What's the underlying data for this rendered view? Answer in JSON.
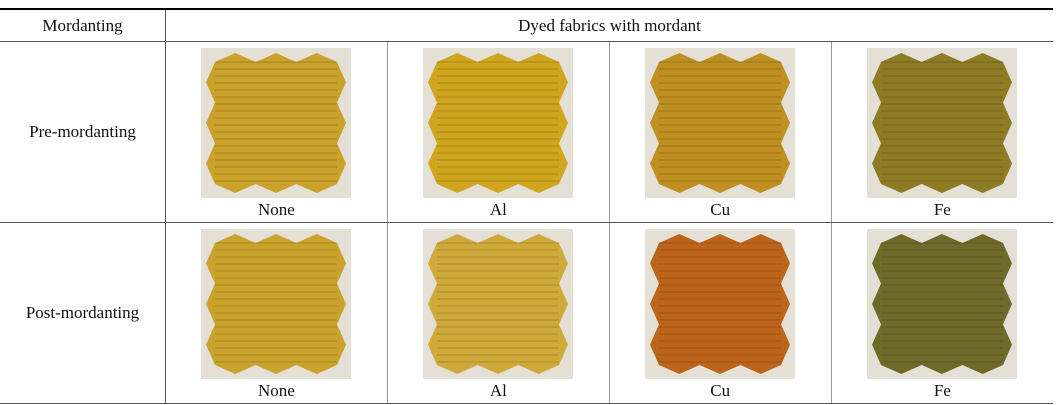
{
  "table": {
    "header": [
      "Mordanting",
      "Dyed fabrics with mordant"
    ],
    "rows": [
      {
        "label": "Pre-mordanting",
        "samples": [
          "None",
          "Al",
          "Cu",
          "Fe"
        ]
      },
      {
        "label": "Post-mordanting",
        "samples": [
          "None",
          "Al",
          "Cu",
          "Fe"
        ]
      }
    ]
  }
}
